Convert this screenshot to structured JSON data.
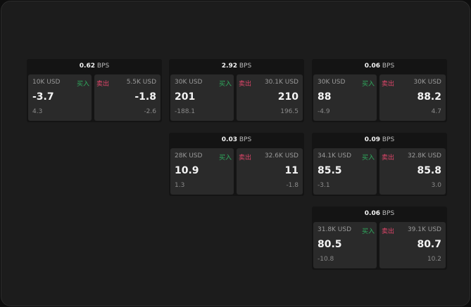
{
  "unit": "BPS",
  "buy_label": "买入",
  "sell_label": "卖出",
  "colors": {
    "buy": "#2fae5f",
    "sell": "#e0466a"
  },
  "tiles": [
    {
      "spread": "0.62",
      "buy": {
        "amount": "10K USD",
        "price": "-3.7",
        "change": "4.3"
      },
      "sell": {
        "amount": "5.5K USD",
        "price": "-1.8",
        "change": "-2.6"
      }
    },
    {
      "spread": "2.92",
      "buy": {
        "amount": "30K USD",
        "price": "201",
        "change": "-188.1"
      },
      "sell": {
        "amount": "30.1K USD",
        "price": "210",
        "change": "196.5"
      }
    },
    {
      "spread": "0.06",
      "buy": {
        "amount": "30K USD",
        "price": "88",
        "change": "-4.9"
      },
      "sell": {
        "amount": "30K USD",
        "price": "88.2",
        "change": "4.7"
      }
    },
    {
      "spread": "0.03",
      "buy": {
        "amount": "28K USD",
        "price": "10.9",
        "change": "1.3"
      },
      "sell": {
        "amount": "32.6K USD",
        "price": "11",
        "change": "-1.8"
      }
    },
    {
      "spread": "0.09",
      "buy": {
        "amount": "34.1K USD",
        "price": "85.5",
        "change": "-3.1"
      },
      "sell": {
        "amount": "32.8K USD",
        "price": "85.8",
        "change": "3.0"
      }
    },
    {
      "spread": "0.06",
      "buy": {
        "amount": "31.8K USD",
        "price": "80.5",
        "change": "-10.8"
      },
      "sell": {
        "amount": "39.1K USD",
        "price": "80.7",
        "change": "10.2"
      }
    }
  ]
}
